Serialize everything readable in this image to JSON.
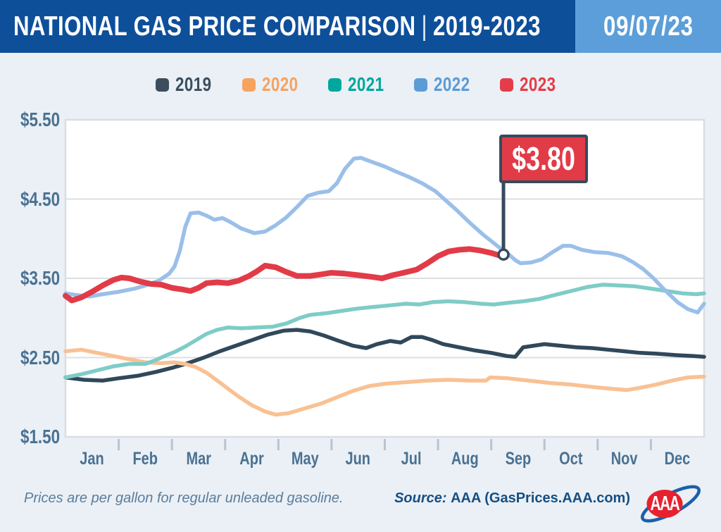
{
  "header": {
    "title_main": "NATIONAL GAS PRICE COMPARISON",
    "title_separator": "|",
    "title_range": "2019-2023",
    "date": "09/07/23"
  },
  "colors": {
    "header_bg": "#0e4f9a",
    "date_box_bg": "#5b9ed9",
    "page_bg": "#eaf0f6",
    "plot_bg": "#ffffff",
    "plot_border": "#d9dde1",
    "gridline": "#dcdfe2",
    "tick": "#b8c4cf",
    "axis_text": "#4a7191",
    "flag_fill": "#e23b48",
    "flag_border": "#374a5c",
    "footer_note_text": "#5c7d9b",
    "footer_source_text": "#174e80",
    "logo_red": "#e8212e",
    "logo_blue": "#1b5fa8"
  },
  "chart_data": {
    "type": "line",
    "title": "National Gas Price Comparison 2019-2023",
    "unit": "USD per gallon of regular unleaded gasoline",
    "legend_position": "top",
    "grid": "horizontal",
    "x_months": [
      "Jan",
      "Feb",
      "Mar",
      "Apr",
      "May",
      "Jun",
      "Jul",
      "Aug",
      "Sep",
      "Oct",
      "Nov",
      "Dec"
    ],
    "y_ticks": [
      "$5.50",
      "$4.50",
      "$3.50",
      "$2.50",
      "$1.50"
    ],
    "y_tick_values": [
      5.5,
      4.5,
      3.5,
      2.5,
      1.5
    ],
    "y_range": [
      1.5,
      5.5
    ],
    "series": [
      {
        "name": "2019",
        "legend_color": "#3c4e5d",
        "line_color": "#30485a",
        "line_width": 5.5,
        "points": [
          [
            0,
            2.25
          ],
          [
            0.35,
            2.22
          ],
          [
            0.7,
            2.21
          ],
          [
            1.0,
            2.24
          ],
          [
            1.35,
            2.27
          ],
          [
            1.7,
            2.32
          ],
          [
            2.0,
            2.37
          ],
          [
            2.3,
            2.43
          ],
          [
            2.6,
            2.5
          ],
          [
            2.9,
            2.58
          ],
          [
            3.2,
            2.65
          ],
          [
            3.5,
            2.72
          ],
          [
            3.8,
            2.79
          ],
          [
            4.1,
            2.84
          ],
          [
            4.35,
            2.85
          ],
          [
            4.6,
            2.83
          ],
          [
            4.85,
            2.78
          ],
          [
            5.1,
            2.72
          ],
          [
            5.4,
            2.65
          ],
          [
            5.65,
            2.62
          ],
          [
            5.85,
            2.67
          ],
          [
            6.1,
            2.71
          ],
          [
            6.3,
            2.69
          ],
          [
            6.5,
            2.76
          ],
          [
            6.7,
            2.76
          ],
          [
            6.9,
            2.72
          ],
          [
            7.1,
            2.67
          ],
          [
            7.4,
            2.63
          ],
          [
            7.7,
            2.59
          ],
          [
            8.0,
            2.56
          ],
          [
            8.3,
            2.52
          ],
          [
            8.45,
            2.51
          ],
          [
            8.6,
            2.63
          ],
          [
            8.8,
            2.65
          ],
          [
            9.0,
            2.67
          ],
          [
            9.3,
            2.65
          ],
          [
            9.6,
            2.63
          ],
          [
            9.9,
            2.62
          ],
          [
            10.2,
            2.6
          ],
          [
            10.5,
            2.58
          ],
          [
            10.8,
            2.56
          ],
          [
            11.1,
            2.55
          ],
          [
            11.5,
            2.53
          ],
          [
            11.8,
            2.52
          ],
          [
            12,
            2.51
          ]
        ]
      },
      {
        "name": "2020",
        "legend_color": "#f6a360",
        "line_color": "#f9c193",
        "line_width": 5.5,
        "points": [
          [
            0,
            2.58
          ],
          [
            0.3,
            2.6
          ],
          [
            0.6,
            2.56
          ],
          [
            0.9,
            2.52
          ],
          [
            1.2,
            2.48
          ],
          [
            1.5,
            2.44
          ],
          [
            1.8,
            2.43
          ],
          [
            2.05,
            2.44
          ],
          [
            2.25,
            2.42
          ],
          [
            2.45,
            2.38
          ],
          [
            2.65,
            2.31
          ],
          [
            2.85,
            2.21
          ],
          [
            3.05,
            2.11
          ],
          [
            3.25,
            2.01
          ],
          [
            3.5,
            1.9
          ],
          [
            3.75,
            1.82
          ],
          [
            3.95,
            1.78
          ],
          [
            4.2,
            1.8
          ],
          [
            4.5,
            1.86
          ],
          [
            4.8,
            1.92
          ],
          [
            5.1,
            2.0
          ],
          [
            5.4,
            2.08
          ],
          [
            5.7,
            2.14
          ],
          [
            6.0,
            2.17
          ],
          [
            6.4,
            2.19
          ],
          [
            6.8,
            2.21
          ],
          [
            7.2,
            2.22
          ],
          [
            7.6,
            2.21
          ],
          [
            7.9,
            2.21
          ],
          [
            7.98,
            2.25
          ],
          [
            8.3,
            2.24
          ],
          [
            8.7,
            2.21
          ],
          [
            9.1,
            2.18
          ],
          [
            9.5,
            2.16
          ],
          [
            9.9,
            2.13
          ],
          [
            10.2,
            2.11
          ],
          [
            10.55,
            2.09
          ],
          [
            10.8,
            2.12
          ],
          [
            11.1,
            2.16
          ],
          [
            11.4,
            2.21
          ],
          [
            11.7,
            2.25
          ],
          [
            12,
            2.26
          ]
        ]
      },
      {
        "name": "2021",
        "legend_color": "#00a79c",
        "line_color": "#7fccc7",
        "line_width": 5.5,
        "points": [
          [
            0,
            2.25
          ],
          [
            0.3,
            2.29
          ],
          [
            0.6,
            2.34
          ],
          [
            0.9,
            2.39
          ],
          [
            1.2,
            2.42
          ],
          [
            1.5,
            2.42
          ],
          [
            1.7,
            2.47
          ],
          [
            1.9,
            2.53
          ],
          [
            2.05,
            2.57
          ],
          [
            2.25,
            2.64
          ],
          [
            2.45,
            2.72
          ],
          [
            2.65,
            2.8
          ],
          [
            2.85,
            2.85
          ],
          [
            3.05,
            2.88
          ],
          [
            3.3,
            2.87
          ],
          [
            3.6,
            2.88
          ],
          [
            3.9,
            2.89
          ],
          [
            4.15,
            2.93
          ],
          [
            4.4,
            3.0
          ],
          [
            4.6,
            3.04
          ],
          [
            4.9,
            3.06
          ],
          [
            5.2,
            3.09
          ],
          [
            5.5,
            3.12
          ],
          [
            5.8,
            3.14
          ],
          [
            6.1,
            3.16
          ],
          [
            6.4,
            3.18
          ],
          [
            6.65,
            3.17
          ],
          [
            6.9,
            3.2
          ],
          [
            7.2,
            3.21
          ],
          [
            7.5,
            3.2
          ],
          [
            7.8,
            3.18
          ],
          [
            8.05,
            3.17
          ],
          [
            8.3,
            3.19
          ],
          [
            8.6,
            3.21
          ],
          [
            8.9,
            3.24
          ],
          [
            9.2,
            3.29
          ],
          [
            9.5,
            3.34
          ],
          [
            9.8,
            3.39
          ],
          [
            10.1,
            3.42
          ],
          [
            10.4,
            3.41
          ],
          [
            10.7,
            3.4
          ],
          [
            11.0,
            3.37
          ],
          [
            11.3,
            3.34
          ],
          [
            11.6,
            3.31
          ],
          [
            11.85,
            3.3
          ],
          [
            12,
            3.31
          ]
        ]
      },
      {
        "name": "2022",
        "legend_color": "#5b9cd6",
        "line_color": "#9abfe9",
        "line_width": 5.5,
        "points": [
          [
            0,
            3.31
          ],
          [
            0.2,
            3.29
          ],
          [
            0.45,
            3.27
          ],
          [
            0.7,
            3.3
          ],
          [
            1.0,
            3.33
          ],
          [
            1.3,
            3.37
          ],
          [
            1.55,
            3.42
          ],
          [
            1.75,
            3.47
          ],
          [
            1.95,
            3.56
          ],
          [
            2.05,
            3.65
          ],
          [
            2.15,
            3.85
          ],
          [
            2.25,
            4.15
          ],
          [
            2.35,
            4.32
          ],
          [
            2.5,
            4.33
          ],
          [
            2.65,
            4.29
          ],
          [
            2.8,
            4.24
          ],
          [
            2.95,
            4.26
          ],
          [
            3.1,
            4.21
          ],
          [
            3.3,
            4.13
          ],
          [
            3.55,
            4.07
          ],
          [
            3.75,
            4.09
          ],
          [
            3.95,
            4.17
          ],
          [
            4.15,
            4.27
          ],
          [
            4.35,
            4.4
          ],
          [
            4.55,
            4.54
          ],
          [
            4.75,
            4.58
          ],
          [
            4.95,
            4.6
          ],
          [
            5.1,
            4.7
          ],
          [
            5.25,
            4.88
          ],
          [
            5.42,
            5.01
          ],
          [
            5.55,
            5.02
          ],
          [
            5.75,
            4.97
          ],
          [
            6.0,
            4.91
          ],
          [
            6.2,
            4.85
          ],
          [
            6.45,
            4.78
          ],
          [
            6.7,
            4.7
          ],
          [
            6.95,
            4.6
          ],
          [
            7.15,
            4.48
          ],
          [
            7.35,
            4.36
          ],
          [
            7.6,
            4.2
          ],
          [
            7.85,
            4.05
          ],
          [
            8.0,
            3.97
          ],
          [
            8.15,
            3.89
          ],
          [
            8.3,
            3.82
          ],
          [
            8.45,
            3.73
          ],
          [
            8.55,
            3.69
          ],
          [
            8.75,
            3.7
          ],
          [
            8.95,
            3.74
          ],
          [
            9.15,
            3.83
          ],
          [
            9.35,
            3.91
          ],
          [
            9.5,
            3.91
          ],
          [
            9.7,
            3.86
          ],
          [
            9.95,
            3.83
          ],
          [
            10.2,
            3.82
          ],
          [
            10.45,
            3.78
          ],
          [
            10.65,
            3.71
          ],
          [
            10.85,
            3.62
          ],
          [
            11.05,
            3.5
          ],
          [
            11.25,
            3.36
          ],
          [
            11.5,
            3.2
          ],
          [
            11.7,
            3.11
          ],
          [
            11.88,
            3.07
          ],
          [
            12,
            3.18
          ]
        ]
      },
      {
        "name": "2023",
        "legend_color": "#e63c49",
        "line_color": "#e23b48",
        "line_width": 8,
        "points": [
          [
            0,
            3.28
          ],
          [
            0.12,
            3.22
          ],
          [
            0.3,
            3.26
          ],
          [
            0.5,
            3.33
          ],
          [
            0.7,
            3.41
          ],
          [
            0.9,
            3.48
          ],
          [
            1.05,
            3.51
          ],
          [
            1.2,
            3.5
          ],
          [
            1.4,
            3.46
          ],
          [
            1.6,
            3.43
          ],
          [
            1.8,
            3.42
          ],
          [
            2.0,
            3.38
          ],
          [
            2.2,
            3.36
          ],
          [
            2.35,
            3.34
          ],
          [
            2.5,
            3.38
          ],
          [
            2.65,
            3.44
          ],
          [
            2.85,
            3.45
          ],
          [
            3.05,
            3.44
          ],
          [
            3.25,
            3.47
          ],
          [
            3.45,
            3.53
          ],
          [
            3.6,
            3.59
          ],
          [
            3.75,
            3.66
          ],
          [
            3.95,
            3.64
          ],
          [
            4.15,
            3.58
          ],
          [
            4.35,
            3.53
          ],
          [
            4.6,
            3.53
          ],
          [
            4.8,
            3.55
          ],
          [
            5.0,
            3.57
          ],
          [
            5.25,
            3.56
          ],
          [
            5.5,
            3.54
          ],
          [
            5.75,
            3.52
          ],
          [
            5.95,
            3.5
          ],
          [
            6.15,
            3.54
          ],
          [
            6.35,
            3.57
          ],
          [
            6.6,
            3.61
          ],
          [
            6.8,
            3.69
          ],
          [
            7.0,
            3.78
          ],
          [
            7.2,
            3.84
          ],
          [
            7.4,
            3.86
          ],
          [
            7.6,
            3.87
          ],
          [
            7.8,
            3.85
          ],
          [
            8.0,
            3.82
          ],
          [
            8.15,
            3.79
          ],
          [
            8.23,
            3.8
          ]
        ]
      }
    ],
    "annotation": {
      "label": "$3.80",
      "series": "2023",
      "x_month": 8.23,
      "value": 3.8
    }
  },
  "footer": {
    "note": "Prices are per gallon for regular unleaded gasoline.",
    "source_prefix": "Source:",
    "source_text": "AAA (GasPrices.AAA.com)",
    "logo_text": "AAA"
  }
}
